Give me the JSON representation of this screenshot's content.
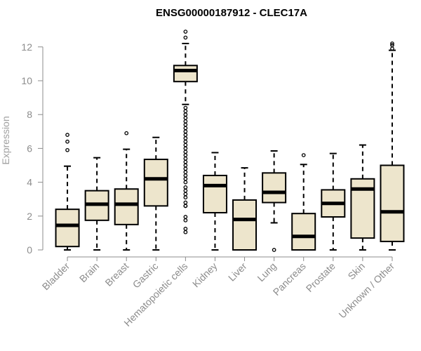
{
  "chart_data": {
    "type": "boxplot",
    "title": "ENSG00000187912 - CLEC17A",
    "ylabel": "Expression",
    "xlabel": "",
    "ylim": [
      0,
      12.6
    ],
    "yticks": [
      0,
      2,
      4,
      6,
      8,
      10,
      12
    ],
    "grid": false,
    "colors": {
      "box_fill": "#ede5cc",
      "stroke": "#000000",
      "axis": "#8c8c8c",
      "text": "#8c8c8c"
    },
    "categories": [
      "Bladder",
      "Brain",
      "Breast",
      "Gastric",
      "Hematopoietic cells",
      "Kidney",
      "Liver",
      "Lung",
      "Pancreas",
      "Prostate",
      "Skin",
      "Unknown / Other"
    ],
    "boxes": [
      {
        "category": "Bladder",
        "whisker_low": 0,
        "q1": 0.2,
        "median": 1.45,
        "q3": 2.4,
        "whisker_high": 4.95,
        "outliers": [
          5.9,
          6.4,
          6.8
        ]
      },
      {
        "category": "Brain",
        "whisker_low": 0,
        "q1": 1.75,
        "median": 2.7,
        "q3": 3.5,
        "whisker_high": 5.45,
        "outliers": []
      },
      {
        "category": "Breast",
        "whisker_low": 0,
        "q1": 1.5,
        "median": 2.7,
        "q3": 3.6,
        "whisker_high": 5.95,
        "outliers": [
          6.9
        ]
      },
      {
        "category": "Gastric",
        "whisker_low": 0,
        "q1": 2.6,
        "median": 4.2,
        "q3": 5.35,
        "whisker_high": 6.65,
        "outliers": []
      },
      {
        "category": "Hematopoietic cells",
        "whisker_low": 8.6,
        "q1": 9.95,
        "median": 10.6,
        "q3": 10.9,
        "whisker_high": 12.2,
        "outliers": [
          12.55,
          12.9,
          8.4,
          8.2,
          8.0,
          7.8,
          7.6,
          7.4,
          7.2,
          7.0,
          6.8,
          6.6,
          6.4,
          6.2,
          6.0,
          5.8,
          5.6,
          5.4,
          5.2,
          5.0,
          4.8,
          4.6,
          4.4,
          4.2,
          4.0,
          3.7,
          3.5,
          3.3,
          3.1,
          2.8,
          2.6,
          2.6,
          1.95,
          1.75,
          1.25,
          1.05
        ]
      },
      {
        "category": "Kidney",
        "whisker_low": 0,
        "q1": 2.2,
        "median": 3.8,
        "q3": 4.4,
        "whisker_high": 5.75,
        "outliers": []
      },
      {
        "category": "Liver",
        "whisker_low": 0,
        "q1": 0,
        "median": 1.8,
        "q3": 2.95,
        "whisker_high": 4.85,
        "outliers": []
      },
      {
        "category": "Lung",
        "whisker_low": 1.6,
        "q1": 2.8,
        "median": 3.4,
        "q3": 4.55,
        "whisker_high": 5.85,
        "outliers": [
          0
        ]
      },
      {
        "category": "Pancreas",
        "whisker_low": 0,
        "q1": 0,
        "median": 0.8,
        "q3": 2.15,
        "whisker_high": 5.05,
        "outliers": [
          5.6
        ]
      },
      {
        "category": "Prostate",
        "whisker_low": 0,
        "q1": 1.95,
        "median": 2.75,
        "q3": 3.55,
        "whisker_high": 5.7,
        "outliers": []
      },
      {
        "category": "Skin",
        "whisker_low": 0,
        "q1": 0.7,
        "median": 3.6,
        "q3": 4.2,
        "whisker_high": 6.2,
        "outliers": []
      },
      {
        "category": "Unknown / Other",
        "whisker_low": 0,
        "q1": 0.5,
        "median": 2.25,
        "q3": 5.0,
        "whisker_high": 11.8,
        "outliers": [
          11.9,
          12.1,
          12.2
        ]
      }
    ]
  }
}
